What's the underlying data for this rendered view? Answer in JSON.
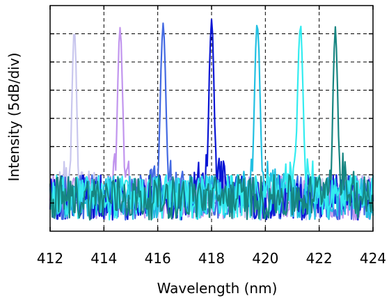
{
  "chart_data": {
    "type": "line",
    "xlabel": "Wavelength (nm)",
    "ylabel": "Intensity (5dB/div)",
    "xlim": [
      412,
      424
    ],
    "ylim": [
      0,
      8
    ],
    "x_ticks": [
      "412",
      "414",
      "416",
      "418",
      "420",
      "422",
      "424"
    ],
    "y_divisions": 8,
    "grid": true,
    "legend": "none",
    "noise_floor": [
      0.4,
      2.0
    ],
    "series": [
      {
        "color": "#c9c7ee",
        "peak_wavelength": 412.9,
        "peak_level": 7.15,
        "width_nm": 0.2
      },
      {
        "color": "#c195ee",
        "peak_wavelength": 414.6,
        "peak_level": 7.3,
        "width_nm": 0.22
      },
      {
        "color": "#4369e2",
        "peak_wavelength": 416.2,
        "peak_level": 7.25,
        "width_nm": 0.24
      },
      {
        "color": "#0a16d4",
        "peak_wavelength": 418.0,
        "peak_level": 7.45,
        "width_nm": 0.22
      },
      {
        "color": "#22c0e2",
        "peak_wavelength": 419.7,
        "peak_level": 7.35,
        "width_nm": 0.24
      },
      {
        "color": "#33ecf0",
        "peak_wavelength": 421.3,
        "peak_level": 7.3,
        "width_nm": 0.24
      },
      {
        "color": "#178581",
        "peak_wavelength": 422.6,
        "peak_level": 7.2,
        "width_nm": 0.2
      }
    ]
  }
}
